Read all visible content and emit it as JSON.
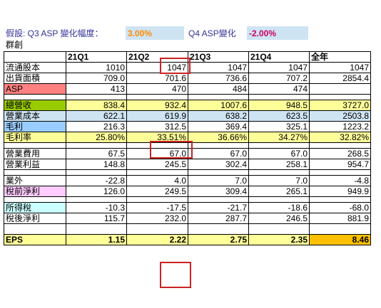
{
  "assumption": {
    "label": "假設: Q3 ASP 變化幅度：",
    "q3_value": "3.00%",
    "q4_label": "Q4 ASP變化",
    "q4_value": "-2.00%"
  },
  "company": "群創",
  "table": {
    "headers": [
      "",
      "21Q1",
      "21Q2",
      "21Q3",
      "21Q4",
      "全年"
    ],
    "rows": [
      {
        "label": "流通股本",
        "values": [
          "1010",
          "1047",
          "1047",
          "1047",
          "1047"
        ]
      },
      {
        "label": "出貨面積",
        "values": [
          "709.0",
          "701.6",
          "736.6",
          "707.2",
          "2854.4"
        ]
      },
      {
        "label": "ASP",
        "values": [
          "413",
          "470",
          "484",
          "474",
          ""
        ]
      },
      {
        "label": "總營收",
        "values": [
          "838.4",
          "932.4",
          "1007.6",
          "948.5",
          "3727.0"
        ]
      },
      {
        "label": "營業成本",
        "values": [
          "622.1",
          "619.9",
          "638.2",
          "623.5",
          "2503.8"
        ]
      },
      {
        "label": "毛利",
        "values": [
          "216.3",
          "312.5",
          "369.4",
          "325.1",
          "1223.2"
        ]
      },
      {
        "label": "毛利率",
        "values": [
          "25.80%",
          "33.51%",
          "36.66%",
          "34.27%",
          "32.82%"
        ]
      },
      {
        "label": "營業費用",
        "values": [
          "67.5",
          "67.0",
          "67.0",
          "67.0",
          "268.5"
        ]
      },
      {
        "label": "營業利益",
        "values": [
          "148.8",
          "245.5",
          "302.4",
          "258.1",
          "954.7"
        ]
      },
      {
        "label": "業外",
        "values": [
          "-22.8",
          "4.0",
          "7.0",
          "7.0",
          "-4.8"
        ]
      },
      {
        "label": "稅前淨利",
        "values": [
          "126.0",
          "249.5",
          "309.4",
          "265.1",
          "949.9"
        ]
      },
      {
        "label": "所得稅",
        "values": [
          "-10.3",
          "-17.5",
          "-21.7",
          "-18.6",
          "-68.0"
        ]
      },
      {
        "label": "稅後淨利",
        "values": [
          "115.7",
          "232.0",
          "287.7",
          "246.5",
          "881.9"
        ]
      },
      {
        "label": "EPS",
        "values": [
          "1.15",
          "2.22",
          "2.75",
          "2.35",
          "8.46"
        ]
      }
    ]
  },
  "colors": {
    "highlight_box": "#cc2222",
    "revenue_row": "#99cc00",
    "yellow_rows": "#ffff99",
    "eps_total": "#ffc000",
    "asp_label": "#ff8080"
  }
}
